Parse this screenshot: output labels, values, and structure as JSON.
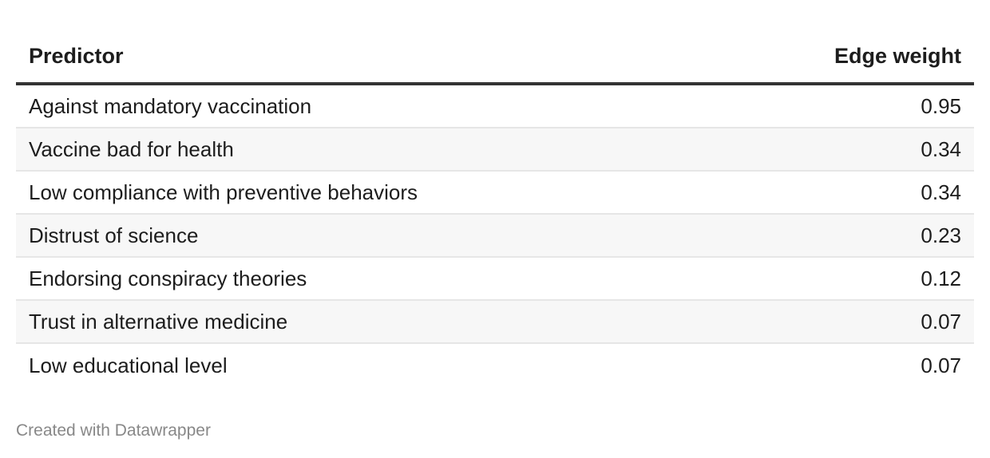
{
  "chart_data": {
    "type": "table",
    "columns": [
      "Predictor",
      "Edge weight"
    ],
    "rows": [
      {
        "label": "Against mandatory vaccination",
        "value": "0.95"
      },
      {
        "label": "Vaccine bad for health",
        "value": "0.34"
      },
      {
        "label": "Low compliance with preventive behaviors",
        "value": "0.34"
      },
      {
        "label": "Distrust of science",
        "value": "0.23"
      },
      {
        "label": "Endorsing conspiracy theories",
        "value": "0.12"
      },
      {
        "label": "Trust in alternative medicine",
        "value": "0.07"
      },
      {
        "label": "Low educational level",
        "value": "0.07"
      }
    ]
  },
  "footer": {
    "credit": "Created with Datawrapper"
  }
}
